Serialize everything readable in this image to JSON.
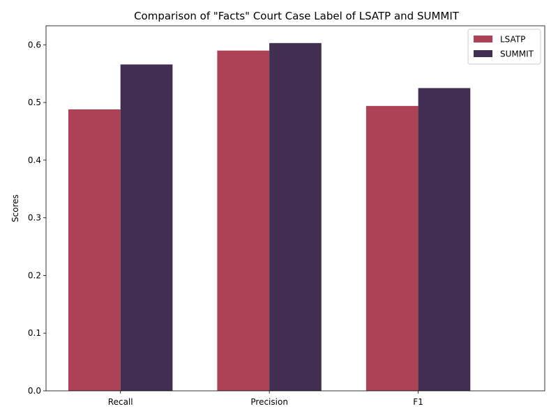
{
  "chart_data": {
    "type": "bar",
    "title": "Comparison of \"Facts\" Court Case Label of LSATP and SUMMIT",
    "xlabel": "",
    "ylabel": "Scores",
    "categories": [
      "Recall",
      "Precision",
      "F1"
    ],
    "series": [
      {
        "name": "LSATP",
        "color": "#ad4257",
        "values": [
          0.488,
          0.59,
          0.494
        ]
      },
      {
        "name": "SUMMIT",
        "color": "#412e50",
        "values": [
          0.566,
          0.603,
          0.525
        ]
      }
    ],
    "ylim": [
      0,
      0.633
    ],
    "yticks": [
      "0.0",
      "0.1",
      "0.2",
      "0.3",
      "0.4",
      "0.5",
      "0.6"
    ],
    "grid": false,
    "legend_position": "top-right"
  }
}
